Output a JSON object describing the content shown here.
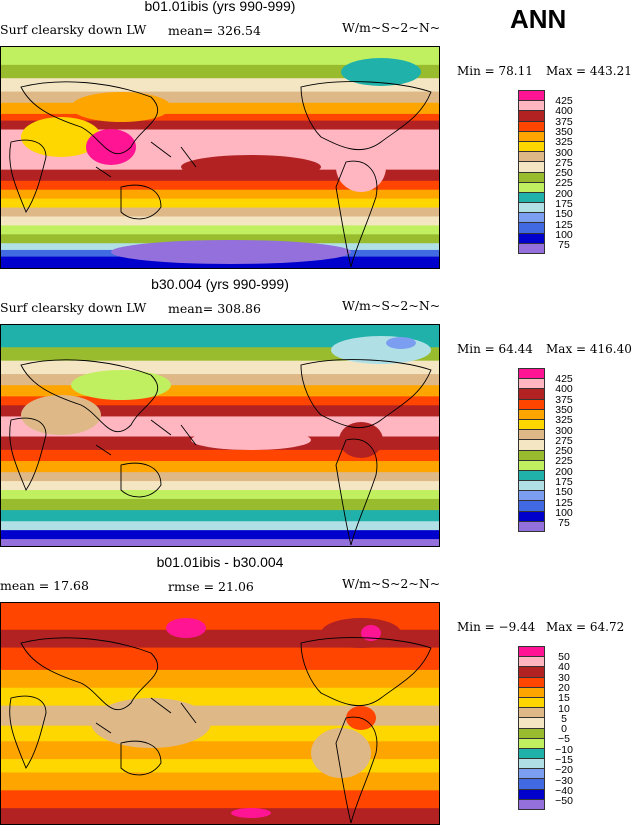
{
  "season": "ANN",
  "colors": [
    "#ff1493",
    "#ffb6c1",
    "#b22222",
    "#ff4500",
    "#ffa500",
    "#ffd700",
    "#deb887",
    "#f5e6c3",
    "#98bc2e",
    "#c0f060",
    "#20b2aa",
    "#b0e0e6",
    "#7b9ef0",
    "#4169e1",
    "#0000cd",
    "#9370db"
  ],
  "panels": [
    {
      "title": "b01.01ibis (yrs 990-999)",
      "left": "Surf clearsky down LW",
      "mid": "mean=  326.54",
      "units": "W/m~S~2~N~",
      "min": "Min =   78.11",
      "max": "Max = 443.21",
      "levels": [
        "425",
        "400",
        "375",
        "350",
        "325",
        "300",
        "275",
        "250",
        "225",
        "200",
        "175",
        "150",
        "125",
        "100",
        "75"
      ]
    },
    {
      "title": "b30.004 (yrs 990-999)",
      "left": "Surf clearsky down LW",
      "mid": "mean=  308.86",
      "units": "W/m~S~2~N~",
      "min": "Min =   64.44",
      "max": "Max = 416.40",
      "levels": [
        "425",
        "400",
        "375",
        "350",
        "325",
        "300",
        "275",
        "250",
        "225",
        "200",
        "175",
        "150",
        "125",
        "100",
        "75"
      ]
    },
    {
      "title": "b01.01ibis - b30.004",
      "left": "mean =   17.68",
      "mid": "rmse =  21.06",
      "units": "W/m~S~2~N~",
      "min": "Min =  −9.44",
      "max": "Max =   64.72",
      "levels": [
        "50",
        "40",
        "30",
        "20",
        "15",
        "10",
        "5",
        "0",
        "−5",
        "−10",
        "−15",
        "−20",
        "−30",
        "−40",
        "−50"
      ]
    }
  ]
}
